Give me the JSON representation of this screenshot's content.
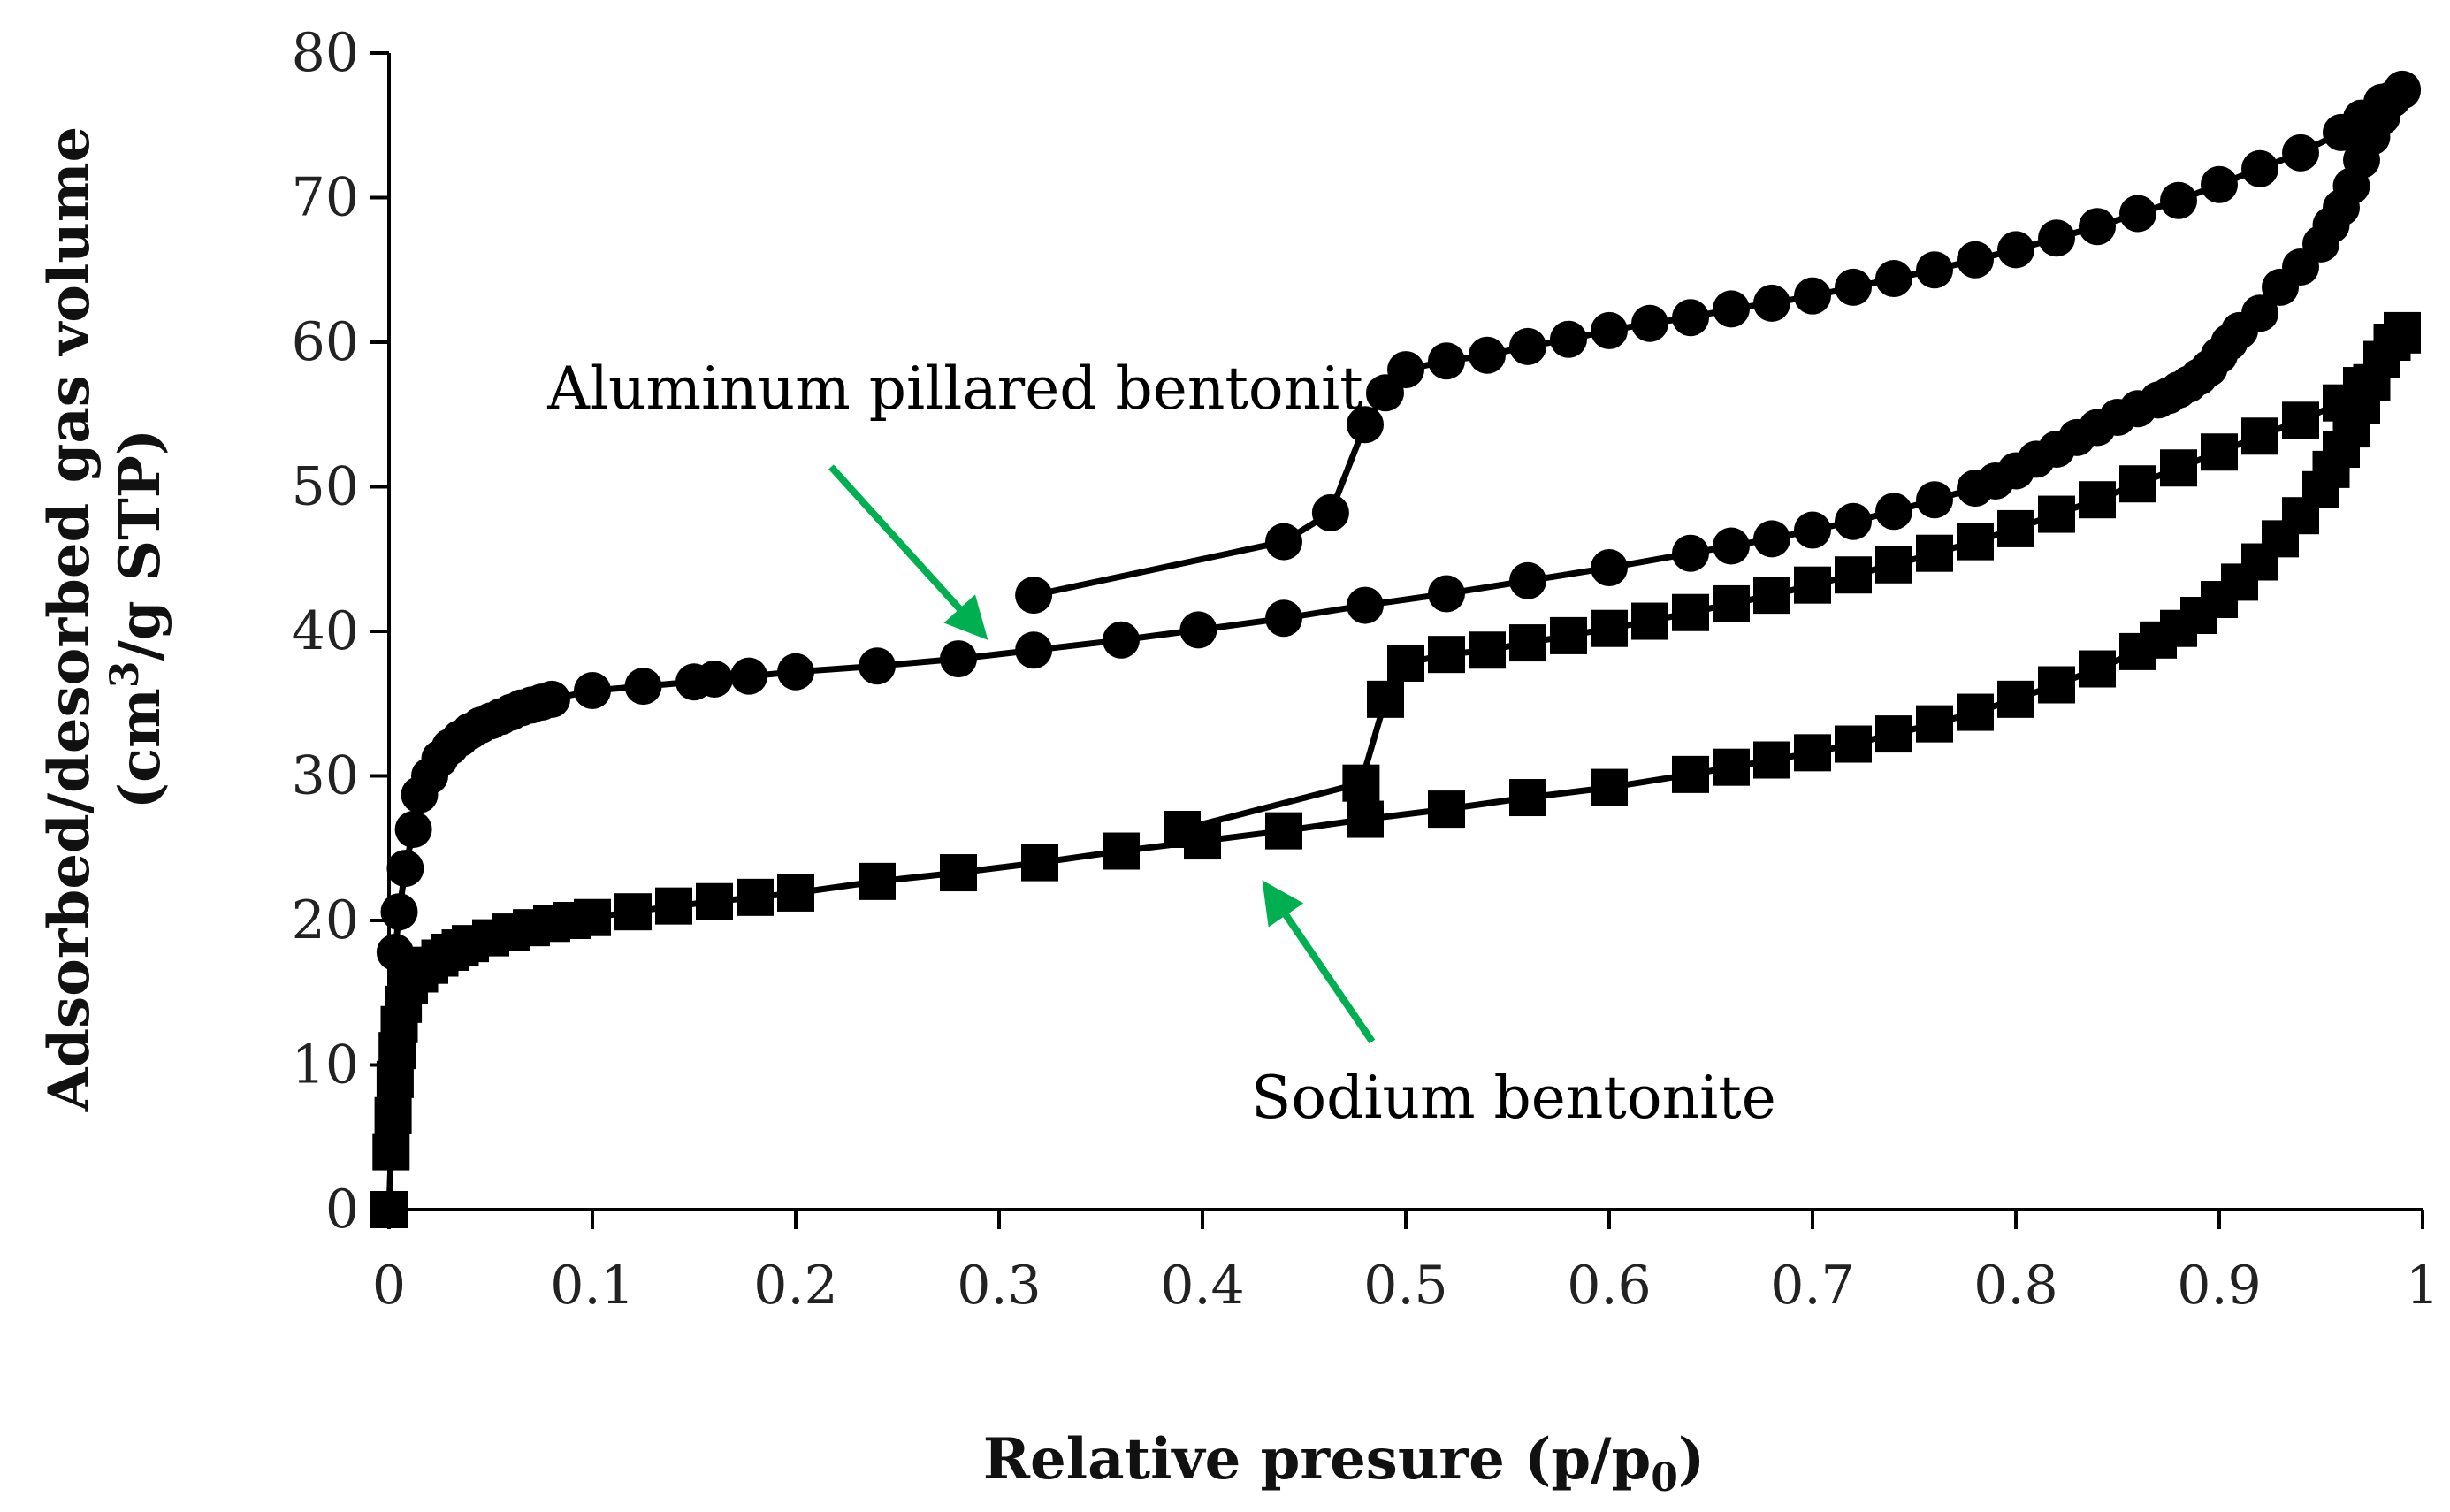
{
  "chart_data": {
    "type": "line",
    "title": "",
    "xlabel": "Relative presure (p/p",
    "xlabel_subscript": "0",
    "xlabel_suffix": ")",
    "ylabel_line1": "Adsorbed/desorbed gas volume",
    "ylabel_line2_prefix": "(cm",
    "ylabel_line2_superscript": "3",
    "ylabel_line2_suffix": "/g STP)",
    "xlim": [
      0,
      1
    ],
    "ylim": [
      0,
      80
    ],
    "x_ticks": [
      "0",
      "0.1",
      "0.2",
      "0.3",
      "0.4",
      "0.5",
      "0.6",
      "0.7",
      "0.8",
      "0.9",
      "1"
    ],
    "y_ticks": [
      "0",
      "10",
      "20",
      "30",
      "40",
      "50",
      "60",
      "70",
      "80"
    ],
    "grid": false,
    "annotations": [
      {
        "text": "Aluminum pillared bentonite",
        "arrow_color": "#00b050"
      },
      {
        "text": "Sodium bentonite",
        "arrow_color": "#00b050"
      }
    ],
    "series": [
      {
        "marker": "circle",
        "color": "#000000",
        "x": [
          0.003,
          0.005,
          0.008,
          0.012,
          0.015,
          0.02,
          0.025,
          0.03,
          0.035,
          0.04,
          0.045,
          0.05,
          0.055,
          0.06,
          0.065,
          0.07,
          0.075,
          0.08,
          0.1,
          0.125,
          0.15,
          0.16,
          0.177,
          0.2,
          0.24,
          0.28,
          0.317,
          0.36,
          0.398,
          0.44,
          0.48,
          0.52,
          0.56,
          0.6,
          0.64,
          0.66,
          0.68,
          0.7,
          0.72,
          0.74,
          0.76,
          0.78,
          0.79,
          0.8,
          0.81,
          0.82,
          0.83,
          0.84,
          0.85,
          0.86,
          0.87,
          0.875,
          0.88,
          0.885,
          0.89,
          0.895,
          0.9,
          0.905,
          0.91,
          0.92,
          0.93,
          0.94,
          0.95,
          0.955,
          0.96,
          0.965,
          0.97,
          0.975,
          0.98,
          0.985,
          0.99
        ],
        "y": [
          17.8,
          20.6,
          23.6,
          26.3,
          28.7,
          30.0,
          31.2,
          32.0,
          32.6,
          33.1,
          33.5,
          33.8,
          34.1,
          34.4,
          34.7,
          34.9,
          35.1,
          35.3,
          35.9,
          36.2,
          36.5,
          36.7,
          36.9,
          37.2,
          37.6,
          38.1,
          38.7,
          39.4,
          40.1,
          40.9,
          41.8,
          42.6,
          43.5,
          44.4,
          45.4,
          45.9,
          46.4,
          47.0,
          47.6,
          48.3,
          49.1,
          49.9,
          50.4,
          51.1,
          51.9,
          52.6,
          53.4,
          54.1,
          54.8,
          55.4,
          56.0,
          56.3,
          56.7,
          57.1,
          57.6,
          58.2,
          59.1,
          60.0,
          60.8,
          62.0,
          63.8,
          65.2,
          66.8,
          68.1,
          69.3,
          70.8,
          72.6,
          74.2,
          75.6,
          76.8,
          77.5
        ]
      },
      {
        "marker": "circle",
        "color": "#000000",
        "x": [
          0.317,
          0.44,
          0.463,
          0.48,
          0.49,
          0.5,
          0.52,
          0.54,
          0.56,
          0.58,
          0.6,
          0.62,
          0.64,
          0.66,
          0.68,
          0.7,
          0.72,
          0.74,
          0.76,
          0.78,
          0.8,
          0.82,
          0.84,
          0.86,
          0.88,
          0.9,
          0.92,
          0.94,
          0.96,
          0.97,
          0.98,
          0.99
        ],
        "y": [
          42.5,
          46.2,
          48.2,
          54.3,
          56.5,
          58.1,
          58.7,
          59.1,
          59.7,
          60.2,
          60.8,
          61.3,
          61.7,
          62.3,
          62.7,
          63.2,
          63.8,
          64.4,
          65.0,
          65.7,
          66.4,
          67.2,
          68.0,
          68.9,
          69.8,
          70.9,
          72.0,
          73.1,
          74.5,
          75.5,
          76.6,
          77.4
        ]
      },
      {
        "marker": "square",
        "color": "#000000",
        "x": [
          0.0,
          0.001,
          0.002,
          0.003,
          0.004,
          0.005,
          0.007,
          0.01,
          0.015,
          0.02,
          0.025,
          0.03,
          0.035,
          0.04,
          0.05,
          0.06,
          0.07,
          0.08,
          0.09,
          0.1,
          0.12,
          0.14,
          0.16,
          0.18,
          0.2,
          0.24,
          0.28,
          0.32,
          0.36,
          0.4,
          0.44,
          0.48,
          0.52,
          0.56,
          0.6,
          0.64,
          0.66,
          0.68,
          0.7,
          0.72,
          0.74,
          0.76,
          0.78,
          0.8,
          0.82,
          0.84,
          0.86,
          0.87,
          0.88,
          0.89,
          0.9,
          0.91,
          0.92,
          0.93,
          0.94,
          0.95,
          0.955,
          0.96,
          0.965,
          0.97,
          0.975,
          0.98,
          0.985,
          0.99
        ],
        "y": [
          0.0,
          4.0,
          6.5,
          9.0,
          11.0,
          12.8,
          14.2,
          15.5,
          16.3,
          16.9,
          17.4,
          17.8,
          18.1,
          18.4,
          18.8,
          19.2,
          19.5,
          19.8,
          20.0,
          20.2,
          20.6,
          21.0,
          21.3,
          21.6,
          21.9,
          22.7,
          23.3,
          24.0,
          24.8,
          25.5,
          26.2,
          27.0,
          27.7,
          28.5,
          29.2,
          30.1,
          30.6,
          31.1,
          31.6,
          32.2,
          32.9,
          33.6,
          34.4,
          35.3,
          36.3,
          37.4,
          38.6,
          39.4,
          40.2,
          41.1,
          42.2,
          43.4,
          44.8,
          46.4,
          48.0,
          49.8,
          51.2,
          52.6,
          54.0,
          55.6,
          57.2,
          58.8,
          60.0,
          60.8
        ]
      },
      {
        "marker": "square",
        "color": "#000000",
        "x": [
          0.39,
          0.478,
          0.49,
          0.5,
          0.52,
          0.54,
          0.56,
          0.58,
          0.6,
          0.62,
          0.64,
          0.66,
          0.68,
          0.7,
          0.72,
          0.74,
          0.76,
          0.78,
          0.8,
          0.82,
          0.84,
          0.86,
          0.88,
          0.9,
          0.92,
          0.94,
          0.96,
          0.97,
          0.98,
          0.99
        ],
        "y": [
          26.3,
          29.5,
          35.3,
          37.8,
          38.4,
          38.7,
          39.2,
          39.7,
          40.2,
          40.7,
          41.3,
          41.9,
          42.5,
          43.2,
          43.9,
          44.6,
          45.4,
          46.2,
          47.1,
          48.1,
          49.1,
          50.2,
          51.3,
          52.4,
          53.5,
          54.6,
          55.8,
          57.0,
          58.8,
          60.5
        ]
      }
    ]
  }
}
